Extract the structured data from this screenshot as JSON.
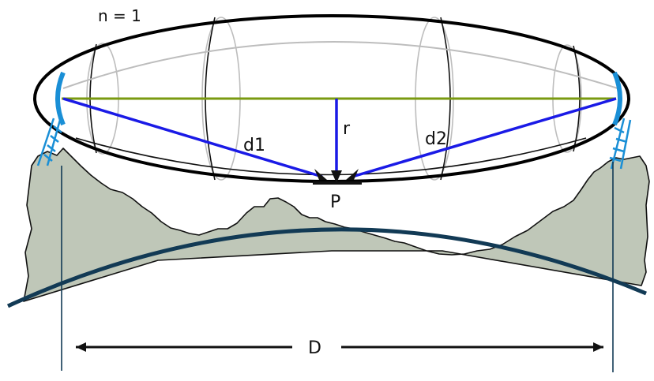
{
  "labels": {
    "n": "n = 1",
    "d1": "d1",
    "d2": "d2",
    "r": "r",
    "P": "P",
    "D": "D"
  },
  "colors": {
    "terrain_fill": "#bfc7b8",
    "earth_curve": "#123a55",
    "los_line": "#7a9a10",
    "rays": "#1a1ae6",
    "antenna": "#1a8fd6",
    "ellipse": "#000000",
    "inner_rings": "#bdbdbd"
  }
}
